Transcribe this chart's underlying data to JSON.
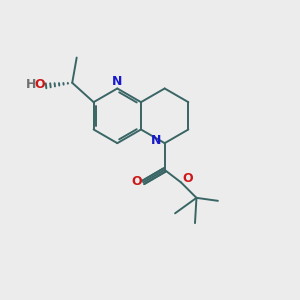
{
  "bg_color": "#ececec",
  "bond_color": "#3a6565",
  "n_color": "#1818cc",
  "o_color": "#cc1818",
  "h_color": "#707070",
  "bond_lw": 1.4,
  "fig_size": [
    3.0,
    3.0
  ],
  "dpi": 100,
  "xlim": [
    0,
    10
  ],
  "ylim": [
    0,
    10
  ]
}
